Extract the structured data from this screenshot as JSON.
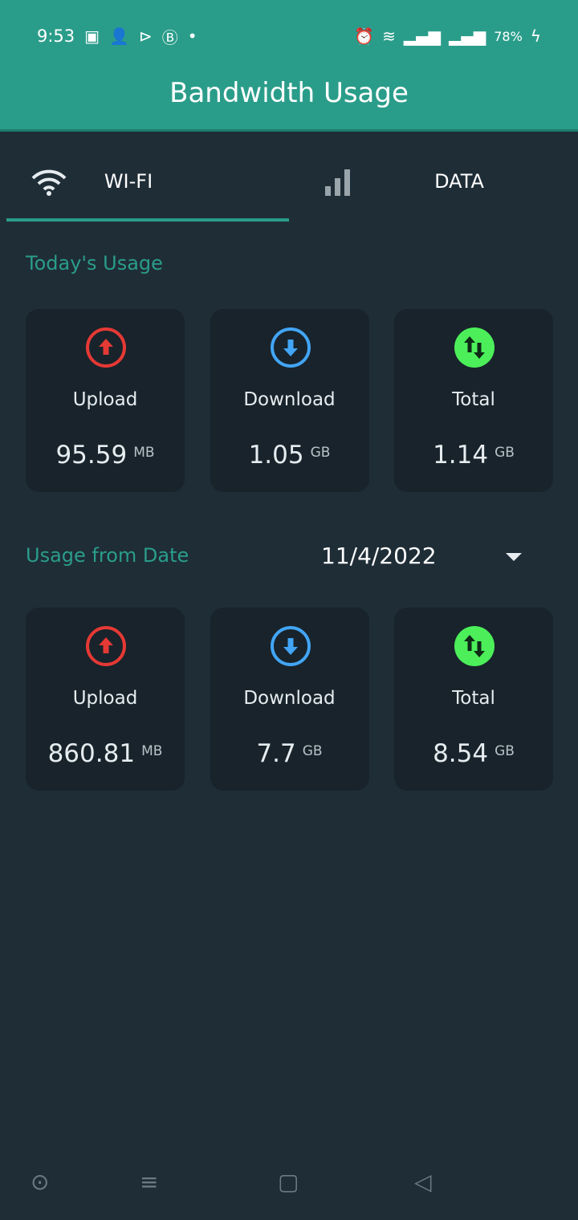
{
  "status_bar": {
    "time": "9:53",
    "battery": "78%"
  },
  "header": {
    "title": "Bandwidth Usage"
  },
  "tabs": [
    {
      "label": "WI-FI",
      "icon": "wifi-icon",
      "active": true
    },
    {
      "label": "DATA",
      "icon": "signal-icon",
      "active": false
    }
  ],
  "today": {
    "title": "Today's Usage",
    "cards": [
      {
        "name": "Upload",
        "value": "95.59",
        "unit": "MB",
        "icon": "upload-icon",
        "color": "#e53935"
      },
      {
        "name": "Download",
        "value": "1.05",
        "unit": "GB",
        "icon": "download-icon",
        "color": "#42a5f5"
      },
      {
        "name": "Total",
        "value": "1.14",
        "unit": "GB",
        "icon": "total-icon",
        "color": "#4cef5a"
      }
    ]
  },
  "from_date": {
    "title": "Usage from Date",
    "date": "11/4/2022",
    "cards": [
      {
        "name": "Upload",
        "value": "860.81",
        "unit": "MB",
        "icon": "upload-icon",
        "color": "#e53935"
      },
      {
        "name": "Download",
        "value": "7.7",
        "unit": "GB",
        "icon": "download-icon",
        "color": "#42a5f5"
      },
      {
        "name": "Total",
        "value": "8.54",
        "unit": "GB",
        "icon": "total-icon",
        "color": "#4cef5a"
      }
    ]
  }
}
